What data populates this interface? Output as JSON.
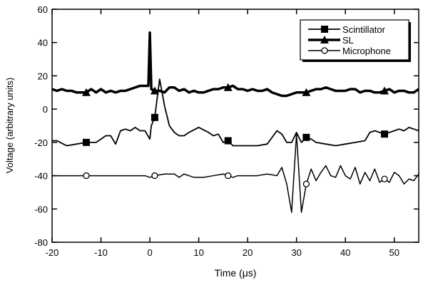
{
  "chart_data": {
    "type": "line",
    "title": "",
    "xlabel": "Time (μs)",
    "ylabel": "Voltage (arbitrary units)",
    "xlim": [
      -20,
      55
    ],
    "ylim": [
      -80,
      60
    ],
    "xticks": [
      -20,
      -10,
      0,
      10,
      20,
      30,
      40,
      50
    ],
    "yticks": [
      -80,
      -60,
      -40,
      -20,
      0,
      20,
      40,
      60
    ],
    "grid": false,
    "legend_position": "top-right",
    "series": [
      {
        "name": "Scintillator",
        "marker": "square",
        "width": 1.8,
        "marker_x": [
          -13,
          1,
          16,
          32,
          48
        ],
        "x": [
          -20,
          -19,
          -17,
          -15,
          -13,
          -11,
          -9,
          -8,
          -7,
          -6,
          -5,
          -4,
          -3,
          -2,
          -1,
          0,
          0.3,
          1,
          2,
          3,
          4,
          5,
          6,
          7,
          8,
          10,
          12,
          13,
          14,
          15,
          16,
          17,
          20,
          22,
          24,
          25,
          26,
          27,
          28,
          29,
          30,
          31,
          32,
          33,
          34,
          36,
          38,
          40,
          42,
          44,
          45,
          46,
          48,
          50,
          51,
          52,
          53,
          54,
          55
        ],
        "y": [
          -19,
          -19,
          -22,
          -21,
          -20,
          -20,
          -16,
          -16,
          -21,
          -13,
          -12,
          -13,
          -11,
          -13,
          -13,
          -18,
          -10,
          -5,
          18,
          2,
          -10,
          -14,
          -16,
          -16,
          -14,
          -11,
          -14,
          -16,
          -15,
          -20,
          -19,
          -22,
          -22,
          -22,
          -21,
          -17,
          -13,
          -15,
          -20,
          -20,
          -14,
          -20,
          -17,
          -18,
          -20,
          -21,
          -22,
          -21,
          -20,
          -19,
          -14,
          -13,
          -15,
          -13,
          -12,
          -13,
          -11,
          -12,
          -13
        ]
      },
      {
        "name": "SL",
        "marker": "triangle",
        "width": 3.5,
        "marker_x": [
          -13,
          1,
          16,
          32,
          48
        ],
        "x": [
          -20,
          -19,
          -18,
          -17,
          -16,
          -15,
          -14,
          -13,
          -12,
          -11,
          -10,
          -9,
          -8,
          -7,
          -6,
          -5,
          -4,
          -3,
          -2,
          -1,
          -0.3,
          0,
          0.3,
          1,
          2,
          3,
          4,
          5,
          6,
          7,
          8,
          9,
          10,
          11,
          12,
          13,
          14,
          15,
          16,
          17,
          18,
          19,
          20,
          21,
          22,
          23,
          24,
          25,
          26,
          27,
          28,
          29,
          30,
          31,
          32,
          33,
          34,
          35,
          36,
          37,
          38,
          39,
          40,
          41,
          42,
          43,
          44,
          45,
          46,
          47,
          48,
          49,
          50,
          51,
          52,
          53,
          54,
          55
        ],
        "y": [
          12,
          11,
          12,
          11,
          11,
          10,
          10,
          10,
          12,
          10,
          12,
          10,
          11,
          10,
          11,
          11,
          12,
          13,
          14,
          14,
          14,
          46,
          12,
          11,
          11,
          10,
          13,
          13,
          11,
          12,
          10,
          11,
          10,
          10,
          11,
          12,
          12,
          13,
          13,
          14,
          12,
          12,
          11,
          12,
          11,
          11,
          12,
          10,
          9,
          8,
          8,
          9,
          10,
          10,
          10,
          11,
          12,
          12,
          13,
          12,
          11,
          11,
          11,
          12,
          12,
          10,
          11,
          11,
          10,
          10,
          11,
          12,
          10,
          11,
          11,
          10,
          10,
          12
        ]
      },
      {
        "name": "Microphone",
        "marker": "circle",
        "width": 1.5,
        "marker_x": [
          -13,
          1,
          16,
          32,
          48
        ],
        "x": [
          -20,
          -13,
          -1,
          0,
          1,
          3,
          5,
          6,
          7,
          8,
          9,
          11,
          13,
          15,
          16,
          17,
          18,
          20,
          22,
          24,
          26,
          27,
          28,
          29,
          30,
          31,
          32,
          33,
          34,
          35,
          36,
          37,
          38,
          39,
          40,
          41,
          42,
          43,
          44,
          45,
          46,
          47,
          48,
          49,
          50,
          51,
          52,
          53,
          54,
          55
        ],
        "y": [
          -40,
          -40,
          -40,
          -41,
          -40,
          -39,
          -39,
          -41,
          -39,
          -40,
          -41,
          -41,
          -40,
          -39,
          -40,
          -41,
          -40,
          -40,
          -40,
          -39,
          -40,
          -35,
          -45,
          -62,
          -15,
          -62,
          -45,
          -36,
          -43,
          -38,
          -34,
          -40,
          -41,
          -34,
          -40,
          -42,
          -35,
          -45,
          -38,
          -43,
          -36,
          -44,
          -42,
          -44,
          -38,
          -40,
          -45,
          -42,
          -43,
          -39
        ]
      }
    ]
  }
}
